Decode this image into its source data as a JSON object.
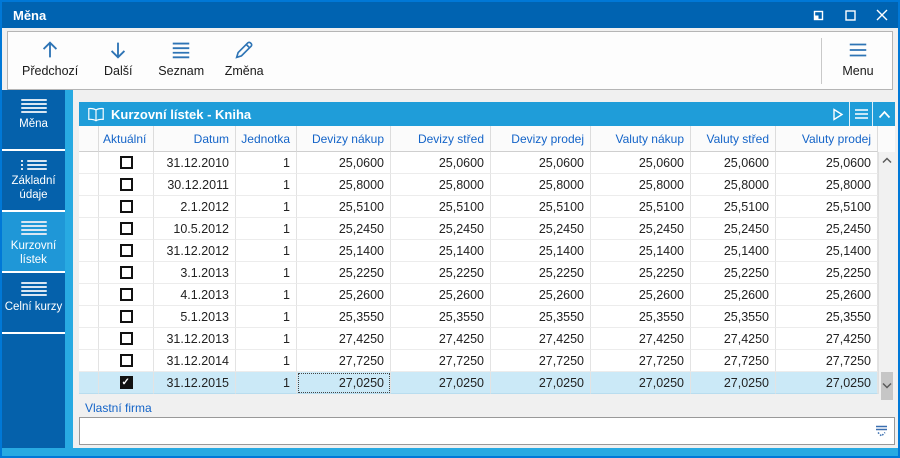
{
  "window": {
    "title": "Měna",
    "controls": {
      "restore": "restore-icon",
      "maximize": "maximize-icon",
      "close": "close-icon"
    }
  },
  "toolbar": {
    "buttons": [
      {
        "label": "Předchozí",
        "icon": "arrow-up-icon"
      },
      {
        "label": "Další",
        "icon": "arrow-down-icon"
      },
      {
        "label": "Seznam",
        "icon": "list-icon"
      },
      {
        "label": "Změna",
        "icon": "pencil-icon"
      }
    ],
    "menu": {
      "label": "Menu",
      "icon": "menu-icon"
    }
  },
  "sidebar": {
    "items": [
      {
        "label": "Měna",
        "icon": "list-icon",
        "selected": false
      },
      {
        "label": "Základní údaje",
        "icon": "list-dots-icon",
        "selected": false
      },
      {
        "label": "Kurzovní lístek",
        "icon": "list-icon",
        "selected": true
      },
      {
        "label": "Celní kurzy",
        "icon": "list-icon",
        "selected": false
      }
    ]
  },
  "panel": {
    "title": "Kurzovní lístek - Kniha",
    "icon": "open-book-icon",
    "header_icons": [
      "play-icon",
      "menu-icon",
      "chevron-up-icon"
    ]
  },
  "table": {
    "columns": [
      "Aktuální",
      "Datum",
      "Jednotka",
      "Devizy nákup",
      "Devizy střed",
      "Devizy prodej",
      "Valuty nákup",
      "Valuty střed",
      "Valuty prodej"
    ],
    "rows": [
      {
        "checked": false,
        "cells": [
          "31.12.2010",
          "1",
          "25,0600",
          "25,0600",
          "25,0600",
          "25,0600",
          "25,0600",
          "25,0600"
        ]
      },
      {
        "checked": false,
        "cells": [
          "30.12.2011",
          "1",
          "25,8000",
          "25,8000",
          "25,8000",
          "25,8000",
          "25,8000",
          "25,8000"
        ]
      },
      {
        "checked": false,
        "cells": [
          "2.1.2012",
          "1",
          "25,5100",
          "25,5100",
          "25,5100",
          "25,5100",
          "25,5100",
          "25,5100"
        ]
      },
      {
        "checked": false,
        "cells": [
          "10.5.2012",
          "1",
          "25,2450",
          "25,2450",
          "25,2450",
          "25,2450",
          "25,2450",
          "25,2450"
        ]
      },
      {
        "checked": false,
        "cells": [
          "31.12.2012",
          "1",
          "25,1400",
          "25,1400",
          "25,1400",
          "25,1400",
          "25,1400",
          "25,1400"
        ]
      },
      {
        "checked": false,
        "cells": [
          "3.1.2013",
          "1",
          "25,2250",
          "25,2250",
          "25,2250",
          "25,2250",
          "25,2250",
          "25,2250"
        ]
      },
      {
        "checked": false,
        "cells": [
          "4.1.2013",
          "1",
          "25,2600",
          "25,2600",
          "25,2600",
          "25,2600",
          "25,2600",
          "25,2600"
        ]
      },
      {
        "checked": false,
        "cells": [
          "5.1.2013",
          "1",
          "25,3550",
          "25,3550",
          "25,3550",
          "25,3550",
          "25,3550",
          "25,3550"
        ]
      },
      {
        "checked": false,
        "cells": [
          "31.12.2013",
          "1",
          "27,4250",
          "27,4250",
          "27,4250",
          "27,4250",
          "27,4250",
          "27,4250"
        ]
      },
      {
        "checked": false,
        "cells": [
          "31.12.2014",
          "1",
          "27,7250",
          "27,7250",
          "27,7250",
          "27,7250",
          "27,7250",
          "27,7250"
        ]
      },
      {
        "checked": true,
        "cells": [
          "31.12.2015",
          "1",
          "27,0250",
          "27,0250",
          "27,0250",
          "27,0250",
          "27,0250",
          "27,0250"
        ]
      }
    ],
    "selected_row_index": 10,
    "focused_column": "Devizy nákup"
  },
  "footer": {
    "label": "Vlastní firma",
    "value": "",
    "dropdown_icon": "dropdown-filter-icon"
  },
  "colors": {
    "titlebar": "#0063b1",
    "window_border": "#0078d7",
    "sidebar": "#0561ab",
    "sidebar_selected": "#1f97d7",
    "accent_strip": "#28aae2",
    "panel_header": "#1f9dd9",
    "header_text": "#1464c8",
    "selected_row": "#cbe9f7",
    "toolbar_icon": "#2e74b5"
  }
}
